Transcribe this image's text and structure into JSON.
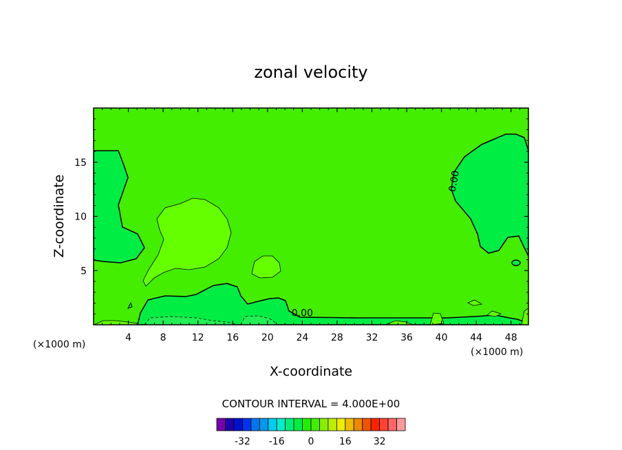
{
  "chart_data": {
    "type": "contour",
    "title": "zonal velocity",
    "xlabel": "X-coordinate",
    "ylabel": "Z-coordinate",
    "x_unit_note": "(×1000 m)",
    "y_unit_note": "(×1000 m)",
    "xlim": [
      0,
      50
    ],
    "ylim": [
      0,
      20
    ],
    "x_ticks": [
      4,
      8,
      12,
      16,
      20,
      24,
      28,
      32,
      36,
      40,
      44,
      48
    ],
    "y_ticks": [
      5,
      10,
      15
    ],
    "contour_interval_text": "CONTOUR INTERVAL = 4.000E+00",
    "contour_labels": [
      {
        "text": "0.00",
        "x": 24.0,
        "z": 0.8
      },
      {
        "text": "0.00",
        "x": 41.8,
        "z": 13.2
      }
    ],
    "background_color": "#44ee00",
    "region_colors": {
      "negative": "#00ee44",
      "positive": "#66ff00"
    },
    "colorbar": {
      "colors": [
        "#7700aa",
        "#2200aa",
        "#0011cc",
        "#0033ee",
        "#0077ee",
        "#0099ee",
        "#00ccee",
        "#00eecc",
        "#00ee77",
        "#00ee44",
        "#22ee00",
        "#44ee00",
        "#88ee00",
        "#bbee00",
        "#eeee00",
        "#eebb00",
        "#ee8800",
        "#ee5500",
        "#ff2200",
        "#ff4433",
        "#ff6666",
        "#ff9999"
      ],
      "tick_labels": [
        "-32",
        "-16",
        "0",
        "16",
        "32"
      ],
      "tick_values": [
        -32,
        -16,
        0,
        16,
        32
      ],
      "vmin": -44,
      "vmax": 44
    }
  }
}
